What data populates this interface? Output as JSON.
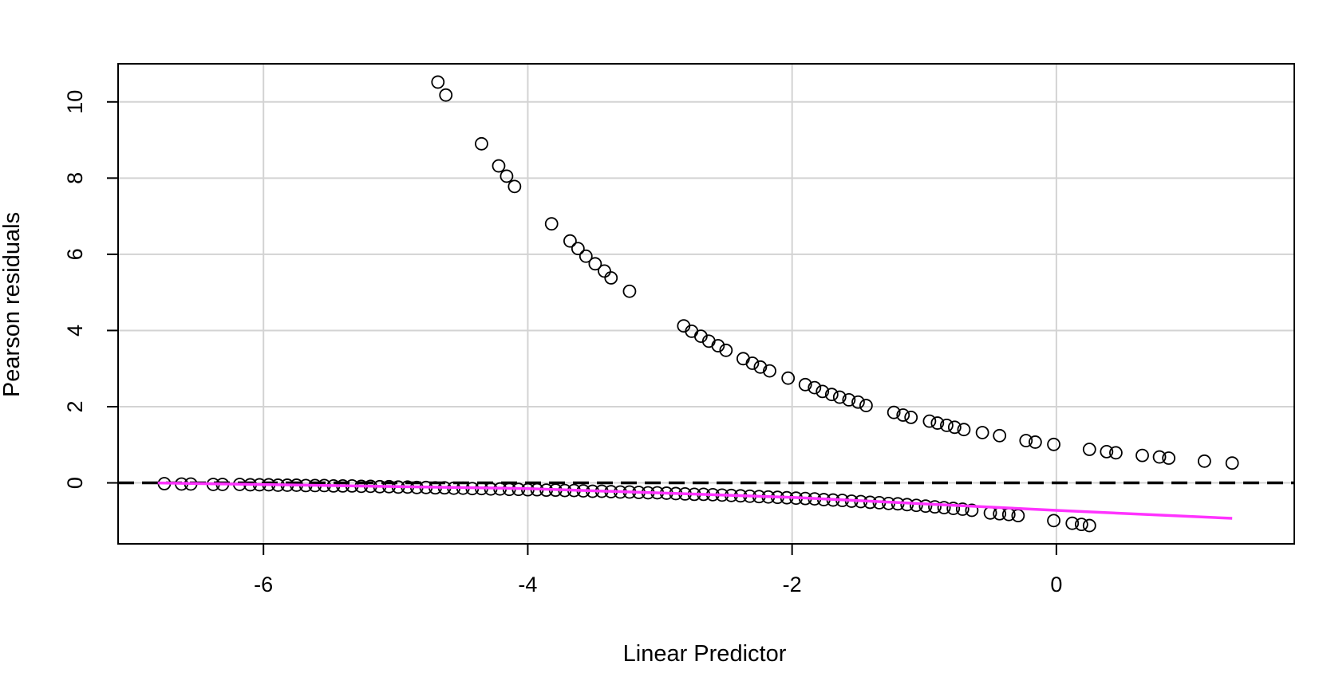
{
  "chart_data": {
    "type": "scatter",
    "title": "",
    "xlabel": "Linear Predictor",
    "ylabel": "Pearson residuals",
    "xlim": [
      -7.1,
      1.8
    ],
    "ylim": [
      -1.6,
      11.0
    ],
    "x_ticks": [
      -6,
      -4,
      -2,
      0
    ],
    "x_tick_labels": [
      "-6",
      "-4",
      "-2",
      "0"
    ],
    "y_ticks": [
      0,
      2,
      4,
      6,
      8,
      10
    ],
    "y_tick_labels": [
      "0",
      "2",
      "4",
      "6",
      "8",
      "10"
    ],
    "grid": true,
    "grid_color": "#d3d3d3",
    "reference_line": {
      "y": 0,
      "style": "dashed",
      "color": "#000000"
    },
    "smooth_line": {
      "color": "#ff33ff",
      "x": [
        -6.8,
        -4,
        -2,
        0,
        1.33
      ],
      "y": [
        0.0,
        -0.15,
        -0.38,
        -0.72,
        -0.93
      ]
    },
    "series": [
      {
        "marker": "open-circle",
        "points": [
          [
            -4.68,
            10.52
          ],
          [
            -4.62,
            10.18
          ],
          [
            -4.35,
            8.9
          ],
          [
            -4.22,
            8.32
          ],
          [
            -4.16,
            8.05
          ],
          [
            -4.1,
            7.78
          ],
          [
            -3.82,
            6.8
          ],
          [
            -3.68,
            6.35
          ],
          [
            -3.62,
            6.15
          ],
          [
            -3.56,
            5.95
          ],
          [
            -3.49,
            5.75
          ],
          [
            -3.42,
            5.56
          ],
          [
            -3.37,
            5.38
          ],
          [
            -3.23,
            5.03
          ],
          [
            -2.82,
            4.12
          ],
          [
            -2.76,
            3.98
          ],
          [
            -2.69,
            3.85
          ],
          [
            -2.63,
            3.72
          ],
          [
            -2.56,
            3.6
          ],
          [
            -2.5,
            3.48
          ],
          [
            -2.37,
            3.26
          ],
          [
            -2.3,
            3.14
          ],
          [
            -2.24,
            3.04
          ],
          [
            -2.17,
            2.94
          ],
          [
            -2.03,
            2.75
          ],
          [
            -1.9,
            2.58
          ],
          [
            -1.83,
            2.5
          ],
          [
            -1.77,
            2.4
          ],
          [
            -1.7,
            2.32
          ],
          [
            -1.64,
            2.25
          ],
          [
            -1.57,
            2.18
          ],
          [
            -1.5,
            2.12
          ],
          [
            -1.44,
            2.03
          ],
          [
            -1.23,
            1.85
          ],
          [
            -1.16,
            1.78
          ],
          [
            -1.1,
            1.72
          ],
          [
            -0.96,
            1.62
          ],
          [
            -0.9,
            1.57
          ],
          [
            -0.83,
            1.51
          ],
          [
            -0.77,
            1.46
          ],
          [
            -0.7,
            1.4
          ],
          [
            -0.56,
            1.32
          ],
          [
            -0.43,
            1.24
          ],
          [
            -0.23,
            1.11
          ],
          [
            -0.16,
            1.07
          ],
          [
            -0.02,
            1.01
          ],
          [
            0.25,
            0.88
          ],
          [
            0.38,
            0.82
          ],
          [
            0.45,
            0.79
          ],
          [
            0.65,
            0.72
          ],
          [
            0.78,
            0.68
          ],
          [
            0.85,
            0.65
          ],
          [
            1.12,
            0.57
          ],
          [
            1.33,
            0.52
          ],
          [
            -6.75,
            -0.02
          ],
          [
            -6.62,
            -0.03
          ],
          [
            -6.55,
            -0.03
          ],
          [
            -6.38,
            -0.04
          ],
          [
            -6.31,
            -0.04
          ],
          [
            -6.18,
            -0.04
          ],
          [
            -6.1,
            -0.05
          ],
          [
            -6.03,
            -0.05
          ],
          [
            -5.96,
            -0.05
          ],
          [
            -5.89,
            -0.06
          ],
          [
            -5.82,
            -0.06
          ],
          [
            -5.75,
            -0.06
          ],
          [
            -5.68,
            -0.07
          ],
          [
            -5.61,
            -0.07
          ],
          [
            -5.54,
            -0.07
          ],
          [
            -5.47,
            -0.08
          ],
          [
            -5.4,
            -0.08
          ],
          [
            -5.33,
            -0.08
          ],
          [
            -5.26,
            -0.09
          ],
          [
            -5.19,
            -0.09
          ],
          [
            -5.12,
            -0.1
          ],
          [
            -5.05,
            -0.1
          ],
          [
            -4.98,
            -0.11
          ],
          [
            -4.91,
            -0.11
          ],
          [
            -4.84,
            -0.12
          ],
          [
            -4.77,
            -0.12
          ],
          [
            -4.7,
            -0.13
          ],
          [
            -4.63,
            -0.13
          ],
          [
            -4.56,
            -0.14
          ],
          [
            -4.49,
            -0.14
          ],
          [
            -4.42,
            -0.15
          ],
          [
            -4.35,
            -0.15
          ],
          [
            -4.28,
            -0.16
          ],
          [
            -4.21,
            -0.16
          ],
          [
            -4.14,
            -0.17
          ],
          [
            -4.07,
            -0.17
          ],
          [
            -4.0,
            -0.18
          ],
          [
            -3.93,
            -0.18
          ],
          [
            -3.86,
            -0.19
          ],
          [
            -3.79,
            -0.19
          ],
          [
            -3.72,
            -0.2
          ],
          [
            -3.65,
            -0.2
          ],
          [
            -3.58,
            -0.21
          ],
          [
            -3.51,
            -0.22
          ],
          [
            -3.44,
            -0.22
          ],
          [
            -3.37,
            -0.23
          ],
          [
            -3.3,
            -0.24
          ],
          [
            -3.23,
            -0.24
          ],
          [
            -3.16,
            -0.25
          ],
          [
            -3.09,
            -0.26
          ],
          [
            -3.02,
            -0.26
          ],
          [
            -2.95,
            -0.27
          ],
          [
            -2.88,
            -0.28
          ],
          [
            -2.81,
            -0.29
          ],
          [
            -2.74,
            -0.3
          ],
          [
            -2.67,
            -0.3
          ],
          [
            -2.6,
            -0.31
          ],
          [
            -2.53,
            -0.32
          ],
          [
            -2.46,
            -0.33
          ],
          [
            -2.39,
            -0.34
          ],
          [
            -2.32,
            -0.35
          ],
          [
            -2.25,
            -0.36
          ],
          [
            -2.18,
            -0.37
          ],
          [
            -2.11,
            -0.38
          ],
          [
            -2.04,
            -0.39
          ],
          [
            -1.97,
            -0.4
          ],
          [
            -1.9,
            -0.41
          ],
          [
            -1.83,
            -0.42
          ],
          [
            -1.76,
            -0.44
          ],
          [
            -1.69,
            -0.45
          ],
          [
            -1.62,
            -0.46
          ],
          [
            -1.55,
            -0.48
          ],
          [
            -1.48,
            -0.49
          ],
          [
            -1.41,
            -0.51
          ],
          [
            -1.34,
            -0.52
          ],
          [
            -1.27,
            -0.54
          ],
          [
            -1.2,
            -0.55
          ],
          [
            -1.13,
            -0.57
          ],
          [
            -1.06,
            -0.59
          ],
          [
            -0.99,
            -0.61
          ],
          [
            -0.92,
            -0.63
          ],
          [
            -0.85,
            -0.65
          ],
          [
            -0.78,
            -0.67
          ],
          [
            -0.71,
            -0.69
          ],
          [
            -0.64,
            -0.72
          ],
          [
            -0.5,
            -0.79
          ],
          [
            -0.43,
            -0.81
          ],
          [
            -0.36,
            -0.83
          ],
          [
            -0.29,
            -0.86
          ],
          [
            -0.02,
            -0.99
          ],
          [
            0.12,
            -1.06
          ],
          [
            0.19,
            -1.09
          ],
          [
            0.25,
            -1.12
          ]
        ]
      }
    ]
  }
}
